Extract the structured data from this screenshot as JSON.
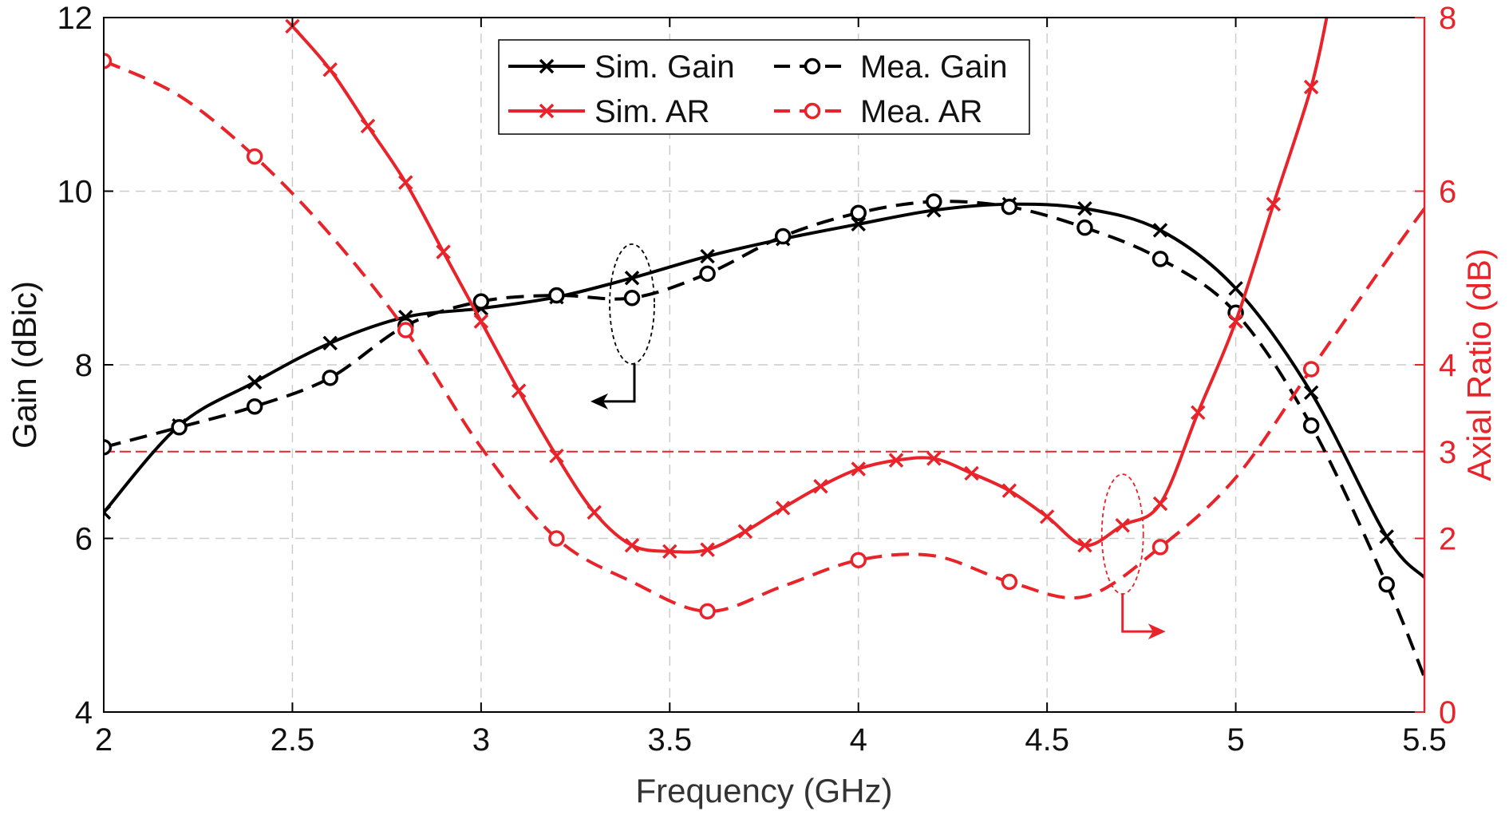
{
  "chart_data": {
    "type": "line",
    "xlabel": "Frequency (GHz)",
    "ylabel_left": "Gain (dBic)",
    "ylabel_right": "Axial Ratio (dB)",
    "xlim": [
      2,
      5.5
    ],
    "ylim_left": [
      4,
      12
    ],
    "ylim_right": [
      0,
      8
    ],
    "x_ticks": [
      2,
      2.5,
      3,
      3.5,
      4,
      4.5,
      5,
      5.5
    ],
    "x_tick_labels": [
      "2",
      "2.5",
      "3",
      "3.5",
      "4",
      "4.5",
      "5",
      "5.5"
    ],
    "y_left_ticks": [
      4,
      6,
      8,
      10,
      12
    ],
    "y_left_tick_labels": [
      "4",
      "6",
      "8",
      "10",
      "12"
    ],
    "y_right_ticks": [
      0,
      2,
      3,
      4,
      6,
      8
    ],
    "y_right_tick_labels": [
      "0",
      "2",
      "3",
      "4",
      "6",
      "8"
    ],
    "grid": true,
    "reference_line": {
      "axis": "right",
      "value": 3,
      "color": "#e8232a"
    },
    "legend_position": "top-center",
    "colors": {
      "black": "#000000",
      "red": "#e8232a",
      "grid": "#cccccc"
    },
    "series": [
      {
        "name": "Sim. Gain",
        "axis": "left",
        "color": "#000000",
        "dash": "solid",
        "marker": "x",
        "x": [
          2.0,
          2.2,
          2.4,
          2.6,
          2.8,
          3.0,
          3.2,
          3.4,
          3.6,
          3.8,
          4.0,
          4.2,
          4.4,
          4.6,
          4.8,
          5.0,
          5.2,
          5.4,
          5.5
        ],
        "y": [
          6.3,
          7.3,
          7.8,
          8.25,
          8.55,
          8.65,
          8.78,
          9.0,
          9.25,
          9.45,
          9.62,
          9.78,
          9.85,
          9.8,
          9.55,
          8.88,
          7.68,
          6.02,
          5.55
        ],
        "marker_x": [
          2.0,
          2.2,
          2.4,
          2.6,
          2.8,
          3.0,
          3.2,
          3.4,
          3.6,
          3.8,
          4.0,
          4.2,
          4.4,
          4.6,
          4.8,
          5.0,
          5.2,
          5.4
        ]
      },
      {
        "name": "Mea. Gain",
        "axis": "left",
        "color": "#000000",
        "dash": "dashed",
        "marker": "o",
        "x": [
          2.0,
          2.2,
          2.4,
          2.6,
          2.8,
          3.0,
          3.2,
          3.4,
          3.6,
          3.8,
          4.0,
          4.2,
          4.4,
          4.6,
          4.8,
          5.0,
          5.2,
          5.4,
          5.5
        ],
        "y": [
          7.05,
          7.28,
          7.52,
          7.85,
          8.45,
          8.73,
          8.8,
          8.77,
          9.05,
          9.48,
          9.75,
          9.88,
          9.82,
          9.58,
          9.22,
          8.6,
          7.3,
          5.47,
          4.4
        ],
        "marker_x": [
          2.0,
          2.2,
          2.4,
          2.6,
          2.8,
          3.0,
          3.2,
          3.4,
          3.6,
          3.8,
          4.0,
          4.2,
          4.4,
          4.6,
          4.8,
          5.0,
          5.2,
          5.4
        ]
      },
      {
        "name": "Sim. AR",
        "axis": "right",
        "color": "#e8232a",
        "dash": "solid",
        "marker": "x",
        "x": [
          2.5,
          2.6,
          2.7,
          2.8,
          2.9,
          3.0,
          3.1,
          3.2,
          3.3,
          3.4,
          3.5,
          3.6,
          3.7,
          3.8,
          3.9,
          4.0,
          4.1,
          4.2,
          4.3,
          4.4,
          4.5,
          4.6,
          4.7,
          4.8,
          4.9,
          5.0,
          5.1,
          5.2,
          5.25
        ],
        "y": [
          7.9,
          7.4,
          6.75,
          6.1,
          5.3,
          4.5,
          3.7,
          2.95,
          2.3,
          1.92,
          1.85,
          1.87,
          2.08,
          2.35,
          2.6,
          2.8,
          2.9,
          2.92,
          2.75,
          2.55,
          2.25,
          1.92,
          2.15,
          2.4,
          3.45,
          4.5,
          5.85,
          7.2,
          8.2
        ],
        "marker_x": [
          2.5,
          2.6,
          2.7,
          2.8,
          2.9,
          3.0,
          3.1,
          3.2,
          3.3,
          3.4,
          3.5,
          3.6,
          3.7,
          3.8,
          3.9,
          4.0,
          4.1,
          4.2,
          4.3,
          4.4,
          4.5,
          4.6,
          4.7,
          4.8,
          4.9,
          5.0,
          5.1,
          5.2
        ]
      },
      {
        "name": "Mea. AR",
        "axis": "right",
        "color": "#e8232a",
        "dash": "dashed",
        "marker": "o",
        "x": [
          2.0,
          2.2,
          2.4,
          2.6,
          2.8,
          3.0,
          3.2,
          3.4,
          3.6,
          3.8,
          4.0,
          4.2,
          4.4,
          4.6,
          4.8,
          5.0,
          5.2,
          5.4,
          5.5
        ],
        "y": [
          7.5,
          7.1,
          6.4,
          5.5,
          4.4,
          3.05,
          2.0,
          1.5,
          1.16,
          1.45,
          1.75,
          1.8,
          1.5,
          1.33,
          1.9,
          2.7,
          3.95,
          5.2,
          5.8
        ],
        "marker_x": [
          2.0,
          2.4,
          2.8,
          3.2,
          3.6,
          4.0,
          4.4,
          4.8,
          5.2
        ]
      }
    ],
    "annotations": [
      {
        "name": "gain-ellipse",
        "x": 3.4,
        "y": 8.7,
        "axis": "left",
        "color": "#000000",
        "arrow": "points-left-to-gain-axis"
      },
      {
        "name": "ar-ellipse",
        "x": 4.7,
        "y": 2.05,
        "axis": "right",
        "color": "#e8232a",
        "arrow": "points-right-to-ar-axis"
      }
    ]
  }
}
